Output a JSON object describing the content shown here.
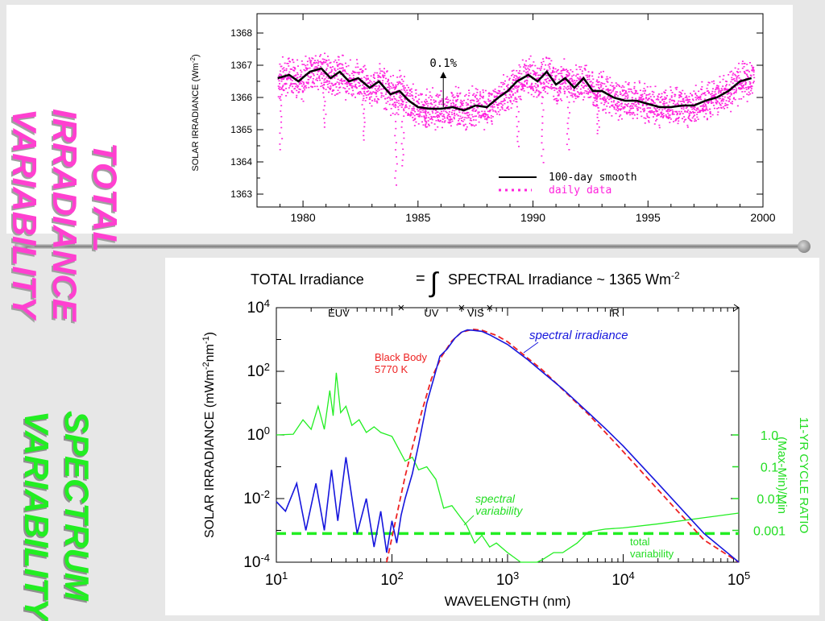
{
  "side_labels": {
    "top": [
      "TOTAL",
      "IRRADIANCE",
      "VARIABILITY"
    ],
    "bottom": [
      "SPECTRUM",
      "VARIABILITY"
    ]
  },
  "colors": {
    "magenta": "#ff22dd",
    "green": "#22ee22",
    "blue": "#1616dd",
    "red": "#ee2222",
    "black": "#000000"
  },
  "chart_data": [
    {
      "type": "line",
      "title": "",
      "xlabel": "",
      "ylabel": "SOLAR IRRADIANCE (Wm",
      "ylabel_sup": "-2",
      "ylabel_close": ")",
      "xlim": [
        1978,
        2000
      ],
      "ylim": [
        1362.6,
        1368.6
      ],
      "xticks": [
        1980,
        1985,
        1990,
        1995,
        2000
      ],
      "yticks": [
        1363,
        1364,
        1365,
        1366,
        1367,
        1368
      ],
      "annotation": "0.1%",
      "annotation_arrow": {
        "x": 1986.1,
        "y_from": 1365.7,
        "y_to": 1366.8
      },
      "legend_position": "bottom-right",
      "series": [
        {
          "name": "100-day smooth",
          "style": "solid",
          "color": "#000000",
          "x": [
            1978.9,
            1979.4,
            1979.8,
            1980.3,
            1980.8,
            1981.2,
            1981.6,
            1982.0,
            1982.4,
            1982.9,
            1983.3,
            1983.8,
            1984.2,
            1984.6,
            1985.0,
            1985.5,
            1986.0,
            1986.5,
            1987.0,
            1987.5,
            1988.0,
            1988.5,
            1988.9,
            1989.3,
            1989.8,
            1990.2,
            1990.6,
            1991.0,
            1991.4,
            1991.8,
            1992.2,
            1992.6,
            1993.0,
            1993.5,
            1994.0,
            1994.5,
            1995.0,
            1995.5,
            1996.0,
            1996.5,
            1997.0,
            1997.5,
            1998.0,
            1998.5,
            1999.0,
            1999.5
          ],
          "y": [
            1366.6,
            1366.7,
            1366.5,
            1366.8,
            1366.9,
            1366.6,
            1366.8,
            1366.5,
            1366.6,
            1366.3,
            1366.5,
            1366.1,
            1366.2,
            1365.9,
            1365.7,
            1365.65,
            1365.65,
            1365.7,
            1365.6,
            1365.75,
            1365.7,
            1366.0,
            1366.2,
            1366.5,
            1366.7,
            1366.5,
            1366.8,
            1366.4,
            1366.6,
            1366.3,
            1366.6,
            1366.2,
            1366.2,
            1366.0,
            1365.9,
            1365.9,
            1365.8,
            1365.7,
            1365.7,
            1365.75,
            1365.75,
            1365.9,
            1366.0,
            1366.2,
            1366.5,
            1366.6
          ]
        },
        {
          "name": "daily data",
          "style": "dotted",
          "color": "#ff22dd",
          "scatter_about_smooth": 0.6,
          "dips": [
            {
              "x": 1979.0,
              "y": 1364.4
            },
            {
              "x": 1980.9,
              "y": 1365.1
            },
            {
              "x": 1982.6,
              "y": 1364.7
            },
            {
              "x": 1984.0,
              "y": 1363.3
            },
            {
              "x": 1984.3,
              "y": 1363.9
            },
            {
              "x": 1985.3,
              "y": 1365.1
            },
            {
              "x": 1989.3,
              "y": 1364.5
            },
            {
              "x": 1990.4,
              "y": 1364.0
            },
            {
              "x": 1991.5,
              "y": 1364.4
            },
            {
              "x": 1992.8,
              "y": 1364.9
            }
          ]
        }
      ]
    },
    {
      "type": "line",
      "title_left": "TOTAL Irradiance",
      "title_eq": "=",
      "title_integral": "∫",
      "title_right": "SPECTRAL Irradiance ~ 1365 Wm",
      "title_sup": "-2",
      "xlabel": "WAVELENGTH (nm)",
      "ylabel": "SOLAR IRRADIANCE (mWm",
      "ylabel_sup1": "-2",
      "ylabel_mid": "nm",
      "ylabel_sup2": "-1",
      "ylabel_close": ")",
      "y2label_line1": "11-YR CYCLE RATIO",
      "y2label_line2": "(Max-Min)/Min",
      "x_scale": "log",
      "y_scale": "log",
      "xlim": [
        10,
        100000
      ],
      "ylim": [
        0.0001,
        10000
      ],
      "xtick_labels": [
        {
          "base": "10",
          "exp": "1",
          "value": 10
        },
        {
          "base": "10",
          "exp": "2",
          "value": 100
        },
        {
          "base": "10",
          "exp": "3",
          "value": 1000
        },
        {
          "base": "10",
          "exp": "4",
          "value": 10000
        },
        {
          "base": "10",
          "exp": "5",
          "value": 100000
        }
      ],
      "ytick_labels": [
        {
          "base": "10",
          "exp": "-4",
          "value": 0.0001
        },
        {
          "base": "10",
          "exp": "-2",
          "value": 0.01
        },
        {
          "base": "10",
          "exp": "0",
          "value": 1
        },
        {
          "base": "10",
          "exp": "2",
          "value": 100
        },
        {
          "base": "10",
          "exp": "4",
          "value": 10000
        }
      ],
      "y2tick_labels": [
        {
          "label": "1.0",
          "y_left": 1
        },
        {
          "label": "0.1",
          "y_left": 0.1
        },
        {
          "label": "0.01",
          "y_left": 0.01
        },
        {
          "label": "0.001",
          "y_left": 0.001
        }
      ],
      "regions": [
        {
          "name": "EUV",
          "from": 10,
          "to": 120
        },
        {
          "name": "UV",
          "from": 120,
          "to": 400
        },
        {
          "name": "VIS",
          "from": 400,
          "to": 700
        },
        {
          "name": "IR",
          "from": 700,
          "to": 100000
        }
      ],
      "labels": {
        "spectral_irradiance": "spectral irradiance",
        "black_body_1": "Black Body",
        "black_body_2": "5770 K",
        "spectral_variability_1": "spectral",
        "spectral_variability_2": "variability",
        "total_variability_1": "total",
        "total_variability_2": "variability"
      },
      "series": [
        {
          "name": "spectral irradiance",
          "color": "#1616dd",
          "x": [
            10,
            12,
            15,
            18,
            22,
            26,
            30,
            34,
            40,
            50,
            60,
            70,
            80,
            90,
            100,
            110,
            120,
            130,
            150,
            170,
            200,
            230,
            260,
            300,
            350,
            400,
            450,
            500,
            600,
            700,
            1000,
            1500,
            2000,
            3000,
            5000,
            7000,
            10000,
            20000,
            50000,
            100000
          ],
          "y": [
            0.008,
            0.004,
            0.03,
            0.001,
            0.03,
            0.001,
            0.08,
            0.002,
            0.2,
            0.0008,
            0.01,
            0.0003,
            0.004,
            0.0002,
            0.002,
            0.0004,
            0.003,
            0.01,
            0.06,
            0.5,
            10,
            60,
            300,
            500,
            1100,
            1700,
            2000,
            1950,
            1800,
            1400,
            700,
            230,
            95,
            28,
            5,
            1.6,
            0.45,
            0.03,
            0.0008,
            4e-05
          ]
        },
        {
          "name": "Black Body 5770 K",
          "color": "#ee2222",
          "style": "dashed",
          "x": [
            90,
            110,
            130,
            150,
            180,
            220,
            270,
            330,
            400,
            500,
            600,
            800,
            1000,
            2000,
            5000,
            10000,
            20000,
            50000,
            100000
          ],
          "y": [
            0.0001,
            0.003,
            0.05,
            0.4,
            5,
            60,
            300,
            900,
            1700,
            2100,
            1950,
            1350,
            850,
            110,
            4.5,
            0.3,
            0.019,
            0.0005,
            3e-05
          ]
        },
        {
          "name": "spectral variability",
          "color": "#22ee22",
          "x": [
            10,
            14,
            17,
            20,
            23,
            26,
            29,
            31,
            33,
            36,
            40,
            45,
            52,
            60,
            70,
            80,
            100,
            115,
            130,
            150,
            170,
            200,
            240,
            280,
            330,
            380,
            440,
            520,
            600,
            700,
            800,
            1000,
            1300,
            1600,
            1800,
            2000,
            2500,
            3000,
            4000,
            5000,
            7000,
            10000,
            20000,
            50000,
            100000
          ],
          "y": [
            1.0,
            1.05,
            3.0,
            1.5,
            8.0,
            1.5,
            25.0,
            4.0,
            90.0,
            5.0,
            8.0,
            2.0,
            3.0,
            1.2,
            1.8,
            1.2,
            0.9,
            0.35,
            0.15,
            0.2,
            0.08,
            0.1,
            0.04,
            0.005,
            0.006,
            0.003,
            0.0015,
            0.0004,
            0.0007,
            0.0003,
            0.0004,
            0.0002,
            0.0001,
            6e-05,
            8e-05,
            0.00012,
            0.0002,
            0.0002,
            0.0004,
            0.0009,
            0.0011,
            0.0012,
            0.0016,
            0.0025,
            0.0035
          ]
        },
        {
          "name": "total variability",
          "color": "#22ee22",
          "style": "dashed",
          "y_constant": 0.0008
        }
      ]
    }
  ]
}
